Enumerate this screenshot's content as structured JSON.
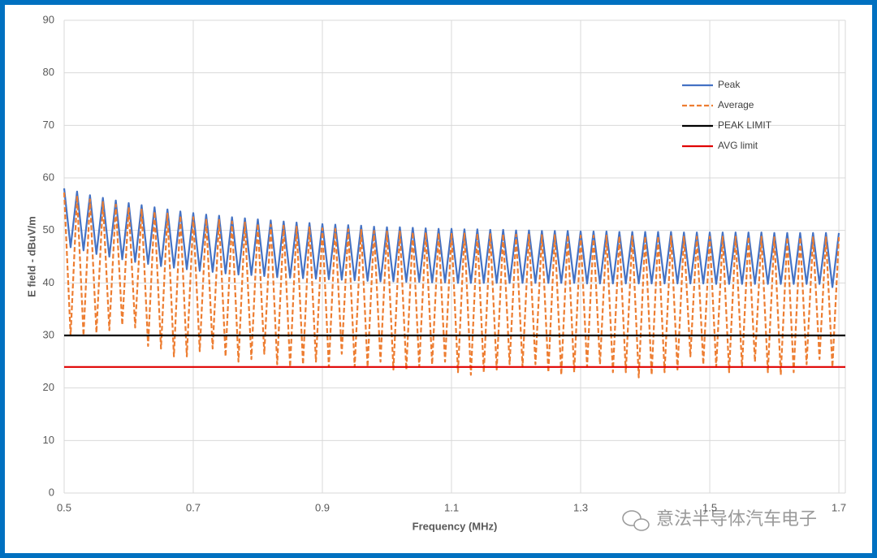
{
  "chart_data": {
    "type": "line",
    "xlabel": "Frequency (MHz)",
    "ylabel": "E field - dBuV/m",
    "xlim": [
      0.5,
      1.71
    ],
    "ylim": [
      0,
      90
    ],
    "xticks": [
      0.5,
      0.7,
      0.9,
      1.1,
      1.3,
      1.5,
      1.7
    ],
    "yticks": [
      0,
      10,
      20,
      30,
      40,
      50,
      60,
      70,
      80,
      90
    ],
    "grid": true,
    "legend": "upper right",
    "x": [
      0.5,
      0.51,
      0.52,
      0.53,
      0.54,
      0.55,
      0.56,
      0.57,
      0.58,
      0.59,
      0.6,
      0.61,
      0.62,
      0.63,
      0.64,
      0.65,
      0.66,
      0.67,
      0.68,
      0.69,
      0.7,
      0.71,
      0.72,
      0.73,
      0.74,
      0.75,
      0.76,
      0.77,
      0.78,
      0.79,
      0.8,
      0.81,
      0.82,
      0.83,
      0.84,
      0.85,
      0.86,
      0.87,
      0.88,
      0.89,
      0.9,
      0.91,
      0.92,
      0.93,
      0.94,
      0.95,
      0.96,
      0.97,
      0.98,
      0.99,
      1.0,
      1.01,
      1.02,
      1.03,
      1.04,
      1.05,
      1.06,
      1.07,
      1.08,
      1.09,
      1.1,
      1.11,
      1.12,
      1.13,
      1.14,
      1.15,
      1.16,
      1.17,
      1.18,
      1.19,
      1.2,
      1.21,
      1.22,
      1.23,
      1.24,
      1.25,
      1.26,
      1.27,
      1.28,
      1.29,
      1.3,
      1.31,
      1.32,
      1.33,
      1.34,
      1.35,
      1.36,
      1.37,
      1.38,
      1.39,
      1.4,
      1.41,
      1.42,
      1.43,
      1.44,
      1.45,
      1.46,
      1.47,
      1.48,
      1.49,
      1.5,
      1.51,
      1.52,
      1.53,
      1.54,
      1.55,
      1.56,
      1.57,
      1.58,
      1.59,
      1.6,
      1.61,
      1.62,
      1.63,
      1.64,
      1.65,
      1.66,
      1.67,
      1.68,
      1.69,
      1.7
    ],
    "series": [
      {
        "name": "Peak",
        "color": "#4472c4",
        "line_style": "solid",
        "values": [
          58.0,
          46.8,
          57.4,
          46.2,
          56.7,
          45.5,
          56.2,
          45.0,
          55.7,
          44.5,
          55.2,
          44.0,
          54.8,
          43.6,
          54.4,
          43.2,
          54.0,
          42.9,
          53.6,
          42.6,
          53.3,
          42.3,
          53.0,
          42.1,
          52.8,
          41.8,
          52.5,
          41.6,
          52.3,
          41.5,
          52.1,
          41.3,
          51.9,
          41.1,
          51.7,
          41.0,
          51.5,
          40.9,
          51.4,
          40.8,
          51.2,
          40.7,
          51.1,
          40.6,
          51.0,
          40.5,
          50.9,
          40.4,
          50.7,
          40.3,
          50.6,
          40.3,
          50.6,
          40.2,
          50.5,
          40.2,
          50.4,
          40.1,
          50.3,
          40.1,
          50.3,
          40.0,
          50.2,
          40.0,
          50.2,
          40.0,
          50.1,
          40.0,
          50.1,
          40.0,
          50.0,
          40.0,
          50.0,
          40.0,
          49.9,
          40.0,
          49.9,
          40.0,
          49.9,
          40.0,
          49.8,
          39.9,
          49.8,
          39.9,
          49.8,
          39.9,
          49.7,
          39.9,
          49.7,
          39.9,
          49.7,
          39.9,
          49.7,
          39.9,
          49.7,
          39.9,
          49.6,
          39.9,
          49.6,
          39.9,
          49.6,
          39.8,
          49.6,
          39.8,
          49.6,
          39.8,
          49.6,
          39.8,
          49.6,
          39.8,
          49.5,
          39.8,
          49.5,
          39.8,
          49.5,
          39.8,
          49.5,
          39.8,
          49.5,
          39.2,
          49.5
        ]
      },
      {
        "name": "Average",
        "color": "#ed7d31",
        "line_style": "dashed",
        "values": [
          57.2,
          30,
          56.6,
          30,
          55.9,
          30.5,
          55.4,
          31,
          54.9,
          32,
          54.4,
          31.5,
          54.0,
          28,
          53.6,
          27.5,
          53.2,
          26,
          52.8,
          26,
          52.5,
          27,
          52.2,
          27.5,
          52.0,
          26,
          51.7,
          25,
          51.5,
          25.5,
          51.3,
          26.5,
          51.1,
          24.5,
          50.9,
          24,
          50.7,
          24.5,
          50.6,
          25,
          50.4,
          24,
          50.3,
          26.5,
          50.2,
          24,
          50.1,
          24,
          49.9,
          25,
          49.8,
          23.5,
          49.8,
          23.5,
          49.7,
          24,
          49.6,
          24.5,
          49.5,
          25,
          49.5,
          23,
          49.4,
          22.5,
          49.4,
          23,
          49.3,
          23.5,
          49.3,
          24.5,
          49.2,
          24,
          49.2,
          24.5,
          49.1,
          23,
          49.1,
          22.5,
          49.1,
          23,
          49.0,
          24,
          49.0,
          24.5,
          49.0,
          23,
          48.9,
          23,
          48.9,
          22,
          48.9,
          22.5,
          48.9,
          23,
          48.9,
          23.5,
          48.8,
          26,
          48.8,
          24.5,
          48.8,
          24,
          48.8,
          23,
          48.8,
          24,
          48.8,
          25,
          48.8,
          23,
          48.7,
          22.5,
          48.7,
          23,
          48.7,
          24.5,
          48.7,
          25.5,
          48.7,
          24,
          48.7
        ]
      },
      {
        "name": "PEAK LIMIT",
        "color": "#000000",
        "line_style": "solid",
        "x": [
          0.5,
          1.71
        ],
        "values": [
          30,
          30
        ]
      },
      {
        "name": "AVG limit",
        "color": "#e00000",
        "line_style": "solid",
        "x": [
          0.5,
          1.71
        ],
        "values": [
          24,
          24
        ]
      }
    ]
  },
  "watermark": "意法半导体汽车电子"
}
